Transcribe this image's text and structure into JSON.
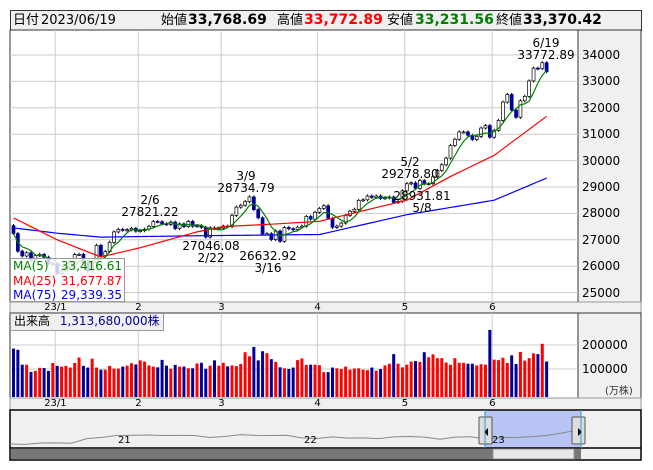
{
  "header": {
    "date_label": "日付",
    "date": "2023/06/19",
    "open_label": "始値",
    "open": "33,768.69",
    "high_label": "高値",
    "high": "33,772.89",
    "low_label": "安値",
    "low": "33,231.56",
    "close_label": "終値",
    "close": "33,370.42"
  },
  "colors": {
    "up_volume": "#ff0000",
    "down_volume": "#000099",
    "down_candle": "#000099",
    "up_candle": "#ffffff",
    "ma5": "#008000",
    "ma25": "#ff0000",
    "ma75": "#0000ff",
    "high_text": "#ff0000",
    "low_text": "#008000"
  },
  "legend": {
    "ma5_label": "MA(5)",
    "ma5": "33,416.61",
    "ma25_label": "MA(25)",
    "ma25": "31,677.87",
    "ma75_label": "MA(75)",
    "ma75": "29,339.35"
  },
  "volume_label": {
    "label": "出来高",
    "value": "1,313,680,000株"
  },
  "annotations": [
    {
      "date": "6/19",
      "value": "33772.89"
    },
    {
      "date": "2/6",
      "value": "27821.22"
    },
    {
      "date": "3/9",
      "value": "28734.79"
    },
    {
      "date": "2/22",
      "value": "27046.08"
    },
    {
      "date": "3/16",
      "value": "26632.92"
    },
    {
      "date": "5/2",
      "value": "29278.80"
    },
    {
      "date": "5/8",
      "value": "28931.81"
    }
  ],
  "chart_data": {
    "type": "candlestick",
    "price_axis": {
      "ticks": [
        34000,
        33000,
        32000,
        31000,
        30000,
        29000,
        28000,
        27000,
        26000,
        25000
      ],
      "ylim": [
        24650,
        34900
      ]
    },
    "month_labels": [
      "23/1",
      "2",
      "3",
      "4",
      "5",
      "6"
    ],
    "month_start_index": [
      10,
      29,
      48,
      70,
      90,
      110
    ],
    "closes": [
      27237,
      26568,
      26387,
      26507,
      26235,
      26405,
      26447,
      26340,
      26093,
      26094,
      25716,
      25820,
      25973,
      26175,
      26446,
      26449,
      26119,
      25822,
      26138,
      26791,
      26405,
      26553,
      26906,
      27299,
      27395,
      27362,
      27382,
      27433,
      27327,
      27346,
      27402,
      27509,
      27693,
      27685,
      27606,
      27584,
      27670,
      27427,
      27602,
      27501,
      27696,
      27513,
      27531,
      27473,
      27104,
      27453,
      27423,
      27445,
      27516,
      27498,
      27927,
      28237,
      28309,
      28444,
      28623,
      28143,
      27832,
      27222,
      27229,
      27010,
      27333,
      26945,
      27466,
      27419,
      27385,
      27476,
      27518,
      27883,
      27782,
      28041,
      28188,
      28287,
      27813,
      27472,
      27518,
      27633,
      27923,
      28082,
      28156,
      28493,
      28514,
      28658,
      28606,
      28657,
      28564,
      28593,
      28620,
      28416,
      28457,
      28856,
      29123,
      29157,
      28949,
      29242,
      29122,
      29126,
      29388,
      29626,
      29842,
      30093,
      30573,
      30808,
      31086,
      31086,
      30957,
      30801,
      30916,
      31233,
      31328,
      30887,
      31148,
      31524,
      32217,
      32506,
      31913,
      31641,
      32265,
      32434,
      33018,
      33502,
      33485,
      33706,
      33370
    ],
    "ma25": [
      [
        0,
        27830
      ],
      [
        10,
        27000
      ],
      [
        20,
        26350
      ],
      [
        29,
        26700
      ],
      [
        42,
        27300
      ],
      [
        48,
        27500
      ],
      [
        60,
        27600
      ],
      [
        70,
        27700
      ],
      [
        90,
        28500
      ],
      [
        100,
        29400
      ],
      [
        110,
        30200
      ],
      [
        122,
        31678
      ]
    ],
    "ma75": [
      [
        0,
        27450
      ],
      [
        10,
        27250
      ],
      [
        20,
        27100
      ],
      [
        40,
        27150
      ],
      [
        70,
        27200
      ],
      [
        90,
        27950
      ],
      [
        110,
        28500
      ],
      [
        122,
        29339
      ]
    ],
    "volume_axis": {
      "ticks": [
        200000,
        100000
      ],
      "unit": "(万株)"
    },
    "volumes": [
      185000,
      180000,
      118000,
      118000,
      88000,
      92000,
      105000,
      104000,
      92000,
      125000,
      113000,
      110000,
      113000,
      106000,
      125000,
      148000,
      113000,
      106000,
      143000,
      106000,
      97000,
      97000,
      113000,
      102000,
      102000,
      110000,
      114000,
      124000,
      119000,
      136000,
      131000,
      115000,
      110000,
      107000,
      138000,
      114000,
      101000,
      117000,
      110000,
      110000,
      103000,
      103000,
      123000,
      126000,
      101000,
      114000,
      136000,
      114000,
      126000,
      111000,
      115000,
      112000,
      121000,
      170000,
      153000,
      192000,
      136000,
      174000,
      166000,
      141000,
      130000,
      107000,
      103000,
      100000,
      106000,
      137000,
      144000,
      117000,
      118000,
      118000,
      116000,
      87000,
      87000,
      106000,
      103000,
      100000,
      110000,
      97000,
      102000,
      103000,
      97000,
      95000,
      106000,
      93000,
      100000,
      115000,
      122000,
      162000,
      122000,
      107000,
      118000,
      131000,
      133000,
      130000,
      170000,
      149000,
      161000,
      145000,
      145000,
      127000,
      118000,
      145000,
      126000,
      126000,
      122000,
      122000,
      115000,
      120000,
      118000,
      263000,
      139000,
      137000,
      147000,
      125000,
      157000,
      121000,
      171000,
      135000,
      145000,
      165000,
      162000,
      205000,
      131368
    ]
  },
  "navigator": {
    "year_labels": [
      "21",
      "22",
      "23"
    ],
    "series": [
      22300,
      22000,
      23100,
      23200,
      22900,
      26400,
      27400,
      28900,
      29000,
      29200,
      28800,
      28900,
      28800,
      27300,
      28100,
      29500,
      28900,
      28800,
      29000,
      27000,
      26500,
      27800,
      26800,
      27000,
      26400,
      27800,
      28100,
      27600,
      26000,
      27600,
      27900,
      26100,
      27300,
      27400,
      28000,
      28900,
      30900,
      33000
    ]
  }
}
